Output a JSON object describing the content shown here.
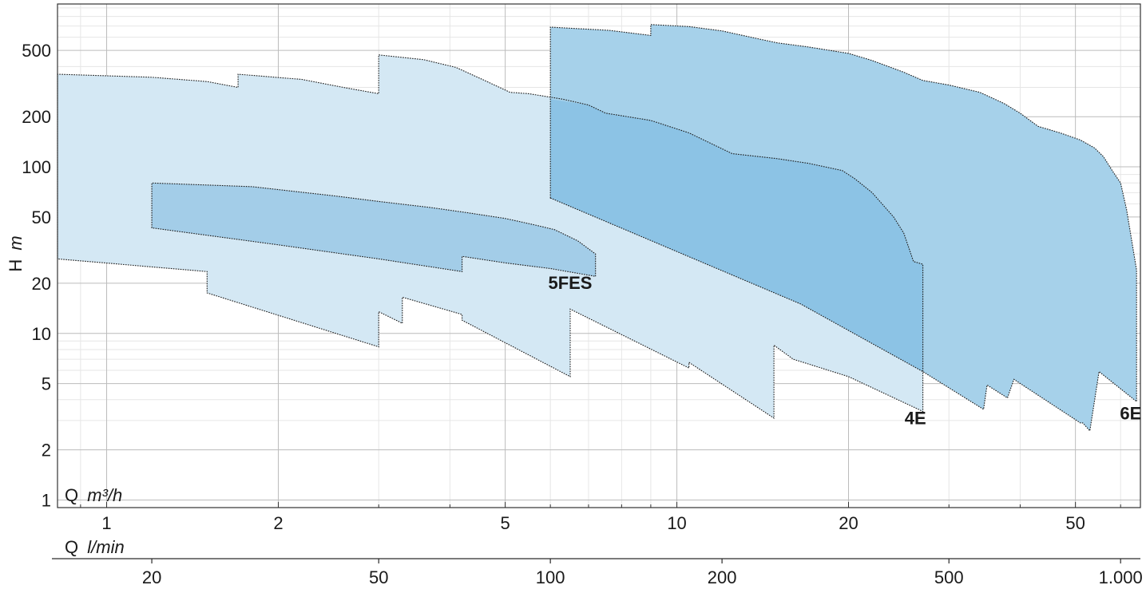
{
  "chart_data": {
    "type": "area",
    "x_scale": "log",
    "y_scale": "log",
    "xlabel_q": "Q",
    "xunit_q": "m³/h",
    "xlabel_l": "Q",
    "xunit_l": "l/min",
    "ylabel": "H",
    "yunit": "m",
    "xlim_m3h": [
      0.82,
      65
    ],
    "ylim": [
      0.9,
      950
    ],
    "x_ticks_m3h": [
      "1",
      "2",
      "5",
      "10",
      "20",
      "50"
    ],
    "x_ticks_lmin": [
      "20",
      "50",
      "100",
      "200",
      "500",
      "1.000"
    ],
    "y_ticks": [
      "1",
      "2",
      "5",
      "10",
      "20",
      "50",
      "100",
      "200",
      "500"
    ],
    "grid": true,
    "colors": {
      "4E": "#d4e8f4",
      "5FES": "#a3cde8",
      "6E": "#a6d1ea",
      "4E_6E_overlap": "#8cc3e5",
      "outline": "#1a1a1a",
      "grid_major": "#bcbcbc",
      "grid_minor": "#e6e6e6"
    },
    "series": [
      {
        "name": "4E",
        "points": [
          [
            0.82,
            240
          ],
          [
            0.82,
            360
          ],
          [
            1.2,
            345
          ],
          [
            1.5,
            325
          ],
          [
            1.7,
            300
          ],
          [
            1.7,
            360
          ],
          [
            2.2,
            335
          ],
          [
            2.6,
            300
          ],
          [
            3.0,
            275
          ],
          [
            3.0,
            470
          ],
          [
            3.6,
            440
          ],
          [
            4.1,
            395
          ],
          [
            4.6,
            330
          ],
          [
            5.1,
            280
          ],
          [
            5.5,
            275
          ],
          [
            6.3,
            255
          ],
          [
            7.0,
            235
          ],
          [
            7.5,
            210
          ],
          [
            9.0,
            190
          ],
          [
            10.5,
            160
          ],
          [
            12.5,
            120
          ],
          [
            15.0,
            112
          ],
          [
            17.0,
            105
          ],
          [
            19.5,
            95
          ],
          [
            20.5,
            85
          ],
          [
            22.0,
            70
          ],
          [
            24.0,
            50
          ],
          [
            25.0,
            40
          ],
          [
            26.0,
            27
          ],
          [
            27.0,
            26
          ],
          [
            27.0,
            3.4
          ],
          [
            20.0,
            5.5
          ],
          [
            16.0,
            7.0
          ],
          [
            14.8,
            8.5
          ],
          [
            14.8,
            3.1
          ],
          [
            10.5,
            6.7
          ],
          [
            10.5,
            6.2
          ],
          [
            6.5,
            14.0
          ],
          [
            6.5,
            5.5
          ],
          [
            4.2,
            12.0
          ],
          [
            4.2,
            13.0
          ],
          [
            3.3,
            16.5
          ],
          [
            3.3,
            11.5
          ],
          [
            3.0,
            13.5
          ],
          [
            3.0,
            8.3
          ],
          [
            1.5,
            17.5
          ],
          [
            1.5,
            23.5
          ],
          [
            0.82,
            28
          ]
        ]
      },
      {
        "name": "5FES",
        "points": [
          [
            1.2,
            43
          ],
          [
            1.2,
            80
          ],
          [
            1.8,
            76
          ],
          [
            2.5,
            67
          ],
          [
            3.0,
            62
          ],
          [
            3.7,
            57
          ],
          [
            4.3,
            53
          ],
          [
            5.0,
            49
          ],
          [
            5.6,
            45
          ],
          [
            6.1,
            42
          ],
          [
            6.7,
            36
          ],
          [
            7.2,
            30
          ],
          [
            7.2,
            22
          ],
          [
            6.0,
            24.5
          ],
          [
            5.0,
            26.5
          ],
          [
            4.2,
            29
          ],
          [
            4.2,
            23.5
          ],
          [
            3.0,
            28
          ],
          [
            2.0,
            34
          ]
        ]
      },
      {
        "name": "6E",
        "points": [
          [
            6.0,
            65
          ],
          [
            6.0,
            690
          ],
          [
            7.6,
            660
          ],
          [
            9.0,
            615
          ],
          [
            9.0,
            715
          ],
          [
            10.5,
            695
          ],
          [
            12.0,
            655
          ],
          [
            13.5,
            600
          ],
          [
            15.0,
            555
          ],
          [
            17.0,
            525
          ],
          [
            20.0,
            480
          ],
          [
            22.0,
            435
          ],
          [
            25.0,
            370
          ],
          [
            27.0,
            330
          ],
          [
            30.0,
            310
          ],
          [
            34.0,
            280
          ],
          [
            37.5,
            240
          ],
          [
            40.0,
            210
          ],
          [
            43.0,
            175
          ],
          [
            47.0,
            160
          ],
          [
            51.0,
            145
          ],
          [
            54.0,
            130
          ],
          [
            56.0,
            115
          ],
          [
            58.0,
            95
          ],
          [
            60.0,
            80
          ],
          [
            61.5,
            55
          ],
          [
            64.0,
            24
          ],
          [
            64.0,
            3.9
          ],
          [
            55.0,
            5.9
          ],
          [
            53.0,
            2.6
          ],
          [
            51.5,
            2.9
          ],
          [
            51.0,
            2.9
          ],
          [
            39.0,
            5.3
          ],
          [
            38.0,
            4.1
          ],
          [
            35.0,
            4.9
          ],
          [
            34.5,
            3.5
          ],
          [
            27.0,
            5.9
          ],
          [
            16.5,
            15.0
          ]
        ]
      }
    ],
    "overlap_region_4E_6E": [
      [
        6.0,
        65
      ],
      [
        6.0,
        255
      ],
      [
        7.0,
        235
      ],
      [
        7.5,
        210
      ],
      [
        9.0,
        190
      ],
      [
        10.5,
        160
      ],
      [
        12.5,
        120
      ],
      [
        15.0,
        112
      ],
      [
        17.0,
        105
      ],
      [
        19.5,
        95
      ],
      [
        20.5,
        85
      ],
      [
        22.0,
        70
      ],
      [
        24.0,
        50
      ],
      [
        25.0,
        40
      ],
      [
        26.0,
        27
      ],
      [
        27.0,
        26
      ],
      [
        27.0,
        5.9
      ],
      [
        16.5,
        15.0
      ]
    ],
    "series_labels": [
      {
        "text": "4E",
        "x": 26.2,
        "y": 2.85
      },
      {
        "text": "5FES",
        "x": 6.5,
        "y": 18.5
      },
      {
        "text": "6E",
        "x": 62.5,
        "y": 3.05
      }
    ]
  }
}
